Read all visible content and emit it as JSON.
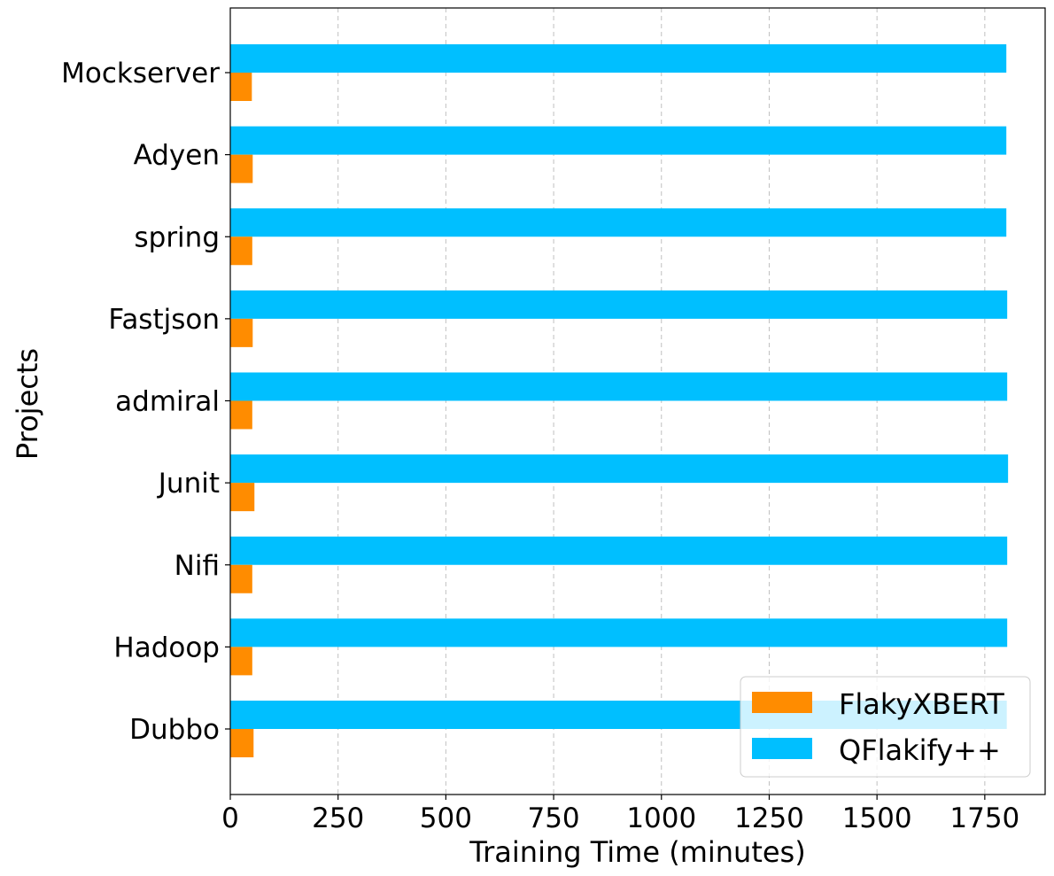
{
  "chart_data": {
    "type": "bar",
    "orientation": "horizontal",
    "categories": [
      "Mockserver",
      "Adyen",
      "spring",
      "Fastjson",
      "admiral",
      "Junit",
      "Nifi",
      "Hadoop",
      "Dubbo"
    ],
    "series": [
      {
        "name": "FlakyXBERT",
        "color": "#ff8c00",
        "values": [
          50,
          52,
          51,
          52,
          51,
          56,
          51,
          51,
          54
        ]
      },
      {
        "name": "QFlakify++",
        "color": "#00bfff",
        "values": [
          1800,
          1800,
          1800,
          1802,
          1802,
          1804,
          1802,
          1802,
          1801
        ]
      }
    ],
    "xlabel": "Training Time (minutes)",
    "ylabel": "Projects",
    "xlim": [
      0,
      1890
    ],
    "xticks": [
      0,
      250,
      500,
      750,
      1000,
      1250,
      1500,
      1750
    ],
    "grid": "x-dashed",
    "legend": "bottom-right"
  }
}
